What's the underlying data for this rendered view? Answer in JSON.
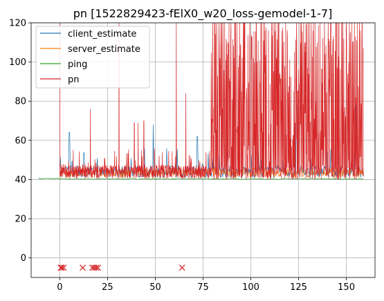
{
  "chart_data": {
    "type": "line",
    "title": "pn [1522829423-fElX0_w20_loss-gemodel-1-7]",
    "xlabel": "",
    "ylabel": "",
    "xlim": [
      -15,
      165
    ],
    "ylim": [
      -10,
      120
    ],
    "xticks": [
      0,
      25,
      50,
      75,
      100,
      125,
      150
    ],
    "yticks": [
      0,
      20,
      40,
      60,
      80,
      100,
      120
    ],
    "grid": true,
    "legend_position": "upper-left",
    "series": [
      {
        "name": "client_estimate",
        "color": "#1f77b4"
      },
      {
        "name": "server_estimate",
        "color": "#ff7f0e"
      },
      {
        "name": "ping",
        "color": "#2ca02c"
      },
      {
        "name": "pn",
        "color": "#d62728"
      }
    ],
    "ping_data": {
      "x_range": [
        -11,
        159
      ],
      "baseline": 40,
      "note_values": [
        40,
        41
      ]
    },
    "spikes": {
      "client_estimate": [
        [
          5,
          64
        ],
        [
          49,
          68
        ],
        [
          56,
          56
        ],
        [
          72,
          62
        ],
        [
          124,
          78
        ],
        [
          155,
          78
        ]
      ],
      "pn": [
        [
          0,
          120
        ],
        [
          16,
          76
        ],
        [
          31,
          120
        ],
        [
          39,
          69
        ],
        [
          41,
          69
        ],
        [
          44,
          70
        ],
        [
          61,
          120
        ],
        [
          66,
          84
        ]
      ]
    },
    "pn_dense_region": {
      "x_range": [
        79,
        159
      ],
      "y_range": [
        40,
        120
      ]
    },
    "loss_markers": {
      "marker": "x",
      "color": "#d62728",
      "y": -5,
      "x": [
        0.5,
        1,
        2,
        12,
        17,
        18,
        19,
        20,
        64
      ]
    }
  }
}
